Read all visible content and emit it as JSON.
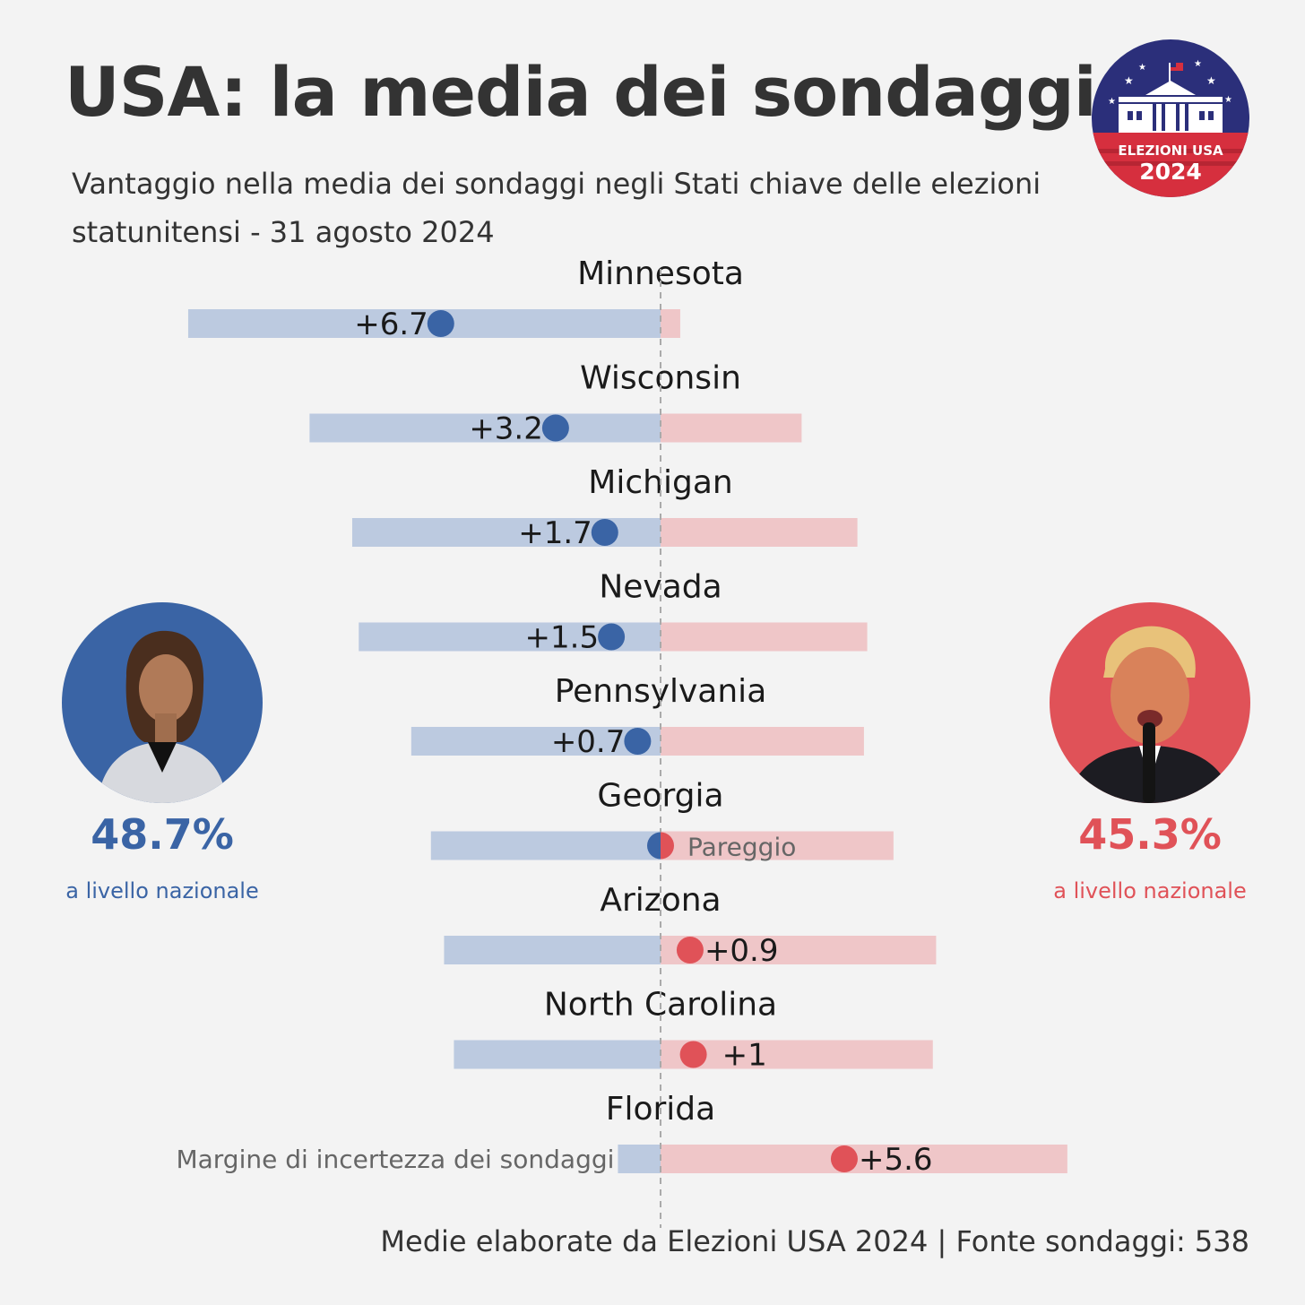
{
  "header": {
    "title": "USA: la media dei sondaggi",
    "subtitle": "Vantaggio nella media dei sondaggi negli Stati chiave delle elezioni statunitensi - 31  agosto 2024"
  },
  "logo": {
    "text": "ELEZIONI USA",
    "year": "2024",
    "icon": "white-house-flag-icon"
  },
  "candidates": {
    "left": {
      "pct": "48.7%",
      "label": "a livello nazionale",
      "color": "#3a64a5",
      "photo": "candidate-portrait"
    },
    "right": {
      "pct": "45.3%",
      "label": "a livello nazionale",
      "color": "#e05258",
      "photo": "candidate-portrait"
    }
  },
  "chart_data": {
    "type": "dot-range",
    "note_label": "Margine di incertezza dei sondaggi",
    "colors": {
      "blue": "#3a64a5",
      "red": "#e05258",
      "blue_band": "#bccae0",
      "red_band": "#efc6c8"
    },
    "states": [
      {
        "name": "Minnesota",
        "lead": -6.7,
        "label": "+6.7",
        "band": [
          -14.4,
          0.6
        ]
      },
      {
        "name": "Wisconsin",
        "lead": -3.2,
        "label": "+3.2",
        "band": [
          -10.7,
          4.3
        ]
      },
      {
        "name": "Michigan",
        "lead": -1.7,
        "label": "+1.7",
        "band": [
          -9.4,
          6.0
        ]
      },
      {
        "name": "Nevada",
        "lead": -1.5,
        "label": "+1.5",
        "band": [
          -9.2,
          6.3
        ]
      },
      {
        "name": "Pennsylvania",
        "lead": -0.7,
        "label": "+0.7",
        "band": [
          -7.6,
          6.2
        ]
      },
      {
        "name": "Georgia",
        "lead": 0,
        "label": "Pareggio",
        "band": [
          -7.0,
          7.1
        ]
      },
      {
        "name": "Arizona",
        "lead": 0.9,
        "label": "+0.9",
        "band": [
          -6.6,
          8.4
        ]
      },
      {
        "name": "North Carolina",
        "lead": 1.0,
        "label": "+1",
        "band": [
          -6.3,
          8.3
        ]
      },
      {
        "name": "Florida",
        "lead": 5.6,
        "label": "+5.6",
        "band": [
          -1.3,
          12.4
        ]
      }
    ]
  },
  "footer": {
    "source": "Medie elaborate da Elezioni USA 2024 | Fonte sondaggi: 538"
  }
}
